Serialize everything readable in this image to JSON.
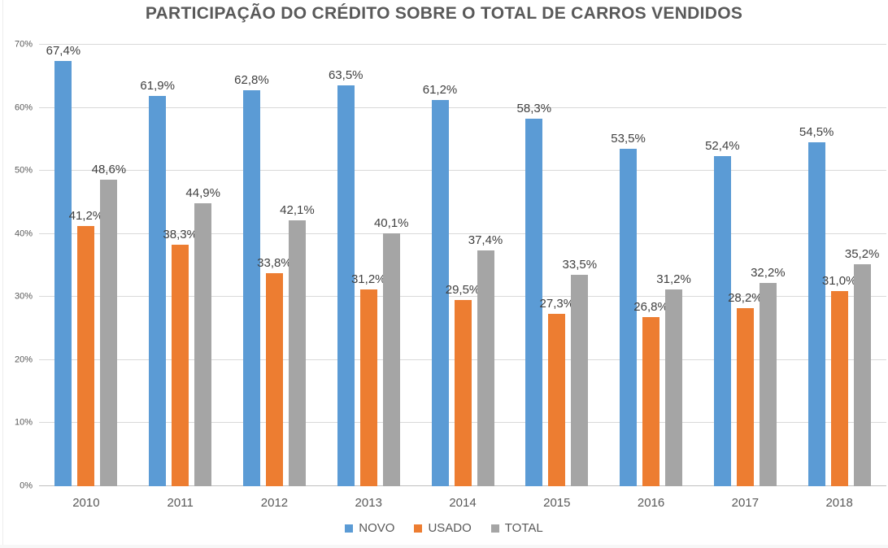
{
  "chart_data": {
    "type": "bar",
    "title": "PARTICIPAÇÃO DO CRÉDITO SOBRE O TOTAL DE CARROS VENDIDOS",
    "categories": [
      "2010",
      "2011",
      "2012",
      "2013",
      "2014",
      "2015",
      "2016",
      "2017",
      "2018"
    ],
    "series": [
      {
        "name": "NOVO",
        "color": "#5B9BD5",
        "values": [
          67.4,
          61.9,
          62.8,
          63.5,
          61.2,
          58.3,
          53.5,
          52.4,
          54.5
        ],
        "labels": [
          "67,4%",
          "61,9%",
          "62,8%",
          "63,5%",
          "61,2%",
          "58,3%",
          "53,5%",
          "52,4%",
          "54,5%"
        ]
      },
      {
        "name": "USADO",
        "color": "#ED7D31",
        "values": [
          41.2,
          38.3,
          33.8,
          31.2,
          29.5,
          27.3,
          26.8,
          28.2,
          31.0
        ],
        "labels": [
          "41,2%",
          "38,3%",
          "33,8%",
          "31,2%",
          "29,5%",
          "27,3%",
          "26,8%",
          "28,2%",
          "31,0%"
        ]
      },
      {
        "name": "TOTAL",
        "color": "#A5A5A5",
        "values": [
          48.6,
          44.9,
          42.1,
          40.1,
          37.4,
          33.5,
          31.2,
          32.2,
          35.2
        ],
        "labels": [
          "48,6%",
          "44,9%",
          "42,1%",
          "40,1%",
          "37,4%",
          "33,5%",
          "31,2%",
          "32,2%",
          "35,2%"
        ]
      }
    ],
    "y_axis": {
      "min": 0,
      "max": 70,
      "ticks": [
        "0%",
        "10%",
        "20%",
        "30%",
        "40%",
        "50%",
        "60%",
        "70%"
      ]
    },
    "grid": true,
    "legend_position": "bottom",
    "data_labels": true
  },
  "colors": {
    "title_text": "#595959",
    "axis_text": "#595959",
    "data_label_text": "#404040",
    "gridline": "#D9D9D9",
    "axis_line": "#BFBFBF",
    "background": "#FFFFFF"
  }
}
